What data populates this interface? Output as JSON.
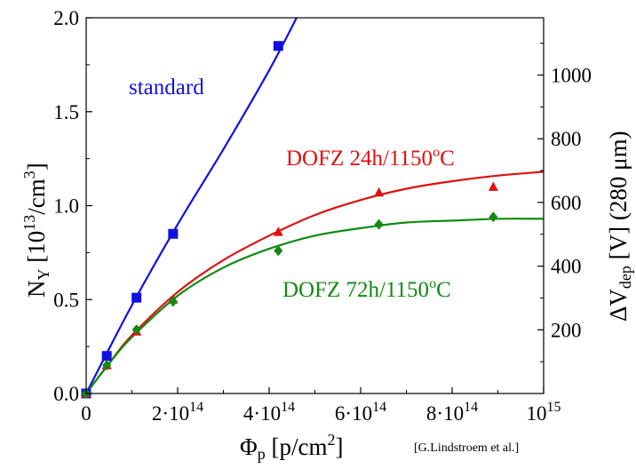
{
  "chart_data": {
    "type": "scatter",
    "xlabel": "Φ",
    "xlabel_sub": "p",
    "xlabel_unit": " [p/cm",
    "xlabel_unit_sup": "2",
    "xlabel_tail": "]",
    "ylabel": "N",
    "ylabel_sub": "Y",
    "ylabel_unit": " [10",
    "ylabel_unit_sup": "13",
    "ylabel_unit2": "/cm",
    "ylabel_unit2_sup": "3",
    "ylabel_tail": "]",
    "y2label": "ΔV",
    "y2label_sub": "dep",
    "y2label_unit": " [V]  (280 μm)",
    "citation": "[G.Lindstroem et al.]",
    "xlim": [
      0,
      1000000000000000.0
    ],
    "ylim": [
      0,
      2.0
    ],
    "y2lim": [
      0,
      1180
    ],
    "x_ticks": [
      {
        "value": 0,
        "base": "0",
        "exp": ""
      },
      {
        "value": 200000000000000.0,
        "base": "2·10",
        "exp": "14"
      },
      {
        "value": 400000000000000.0,
        "base": "4·10",
        "exp": "14"
      },
      {
        "value": 600000000000000.0,
        "base": "6·10",
        "exp": "14"
      },
      {
        "value": 800000000000000.0,
        "base": "8·10",
        "exp": "14"
      },
      {
        "value": 1000000000000000.0,
        "base": "10",
        "exp": "15"
      }
    ],
    "y_ticks": [
      "0.0",
      "0.5",
      "1.0",
      "1.5",
      "2.0"
    ],
    "y2_ticks": [
      "200",
      "400",
      "600",
      "800",
      "1000"
    ],
    "series": [
      {
        "name": "standard",
        "color": "#1010e0",
        "marker": "square",
        "points": [
          [
            0,
            0.0
          ],
          [
            45000000000000.0,
            0.2
          ],
          [
            110000000000000.0,
            0.51
          ],
          [
            190000000000000.0,
            0.85
          ],
          [
            420000000000000.0,
            1.85
          ]
        ],
        "fit": [
          [
            0,
            0.0
          ],
          [
            100000000000000.0,
            0.47
          ],
          [
            200000000000000.0,
            0.9
          ],
          [
            300000000000000.0,
            1.3
          ],
          [
            400000000000000.0,
            1.72
          ],
          [
            460000000000000.0,
            2.0
          ]
        ]
      },
      {
        "name": "DOFZ 24h/1150",
        "label_sup": "o",
        "label_tail": "C",
        "color": "#e01010",
        "marker": "triangle",
        "points": [
          [
            0,
            0.0
          ],
          [
            45000000000000.0,
            0.15
          ],
          [
            110000000000000.0,
            0.33
          ],
          [
            190000000000000.0,
            0.5
          ],
          [
            420000000000000.0,
            0.86
          ],
          [
            640000000000000.0,
            1.07
          ],
          [
            890000000000000.0,
            1.1
          ]
        ],
        "fit": [
          [
            0,
            0.0
          ],
          [
            50000000000000.0,
            0.16
          ],
          [
            100000000000000.0,
            0.31
          ],
          [
            200000000000000.0,
            0.54
          ],
          [
            300000000000000.0,
            0.71
          ],
          [
            400000000000000.0,
            0.84
          ],
          [
            500000000000000.0,
            0.95
          ],
          [
            600000000000000.0,
            1.03
          ],
          [
            700000000000000.0,
            1.09
          ],
          [
            800000000000000.0,
            1.13
          ],
          [
            900000000000000.0,
            1.16
          ],
          [
            1000000000000000.0,
            1.18
          ]
        ]
      },
      {
        "name": "DOFZ 72h/1150",
        "label_sup": "o",
        "label_tail": "C",
        "color": "#108a10",
        "marker": "diamond",
        "points": [
          [
            0,
            0.0
          ],
          [
            45000000000000.0,
            0.15
          ],
          [
            110000000000000.0,
            0.34
          ],
          [
            190000000000000.0,
            0.49
          ],
          [
            420000000000000.0,
            0.76
          ],
          [
            640000000000000.0,
            0.9
          ],
          [
            890000000000000.0,
            0.94
          ]
        ],
        "fit": [
          [
            0,
            0.0
          ],
          [
            50000000000000.0,
            0.16
          ],
          [
            100000000000000.0,
            0.3
          ],
          [
            200000000000000.0,
            0.52
          ],
          [
            300000000000000.0,
            0.67
          ],
          [
            400000000000000.0,
            0.77
          ],
          [
            500000000000000.0,
            0.84
          ],
          [
            600000000000000.0,
            0.88
          ],
          [
            700000000000000.0,
            0.91
          ],
          [
            800000000000000.0,
            0.92
          ],
          [
            900000000000000.0,
            0.93
          ],
          [
            1000000000000000.0,
            0.93
          ]
        ]
      }
    ]
  }
}
